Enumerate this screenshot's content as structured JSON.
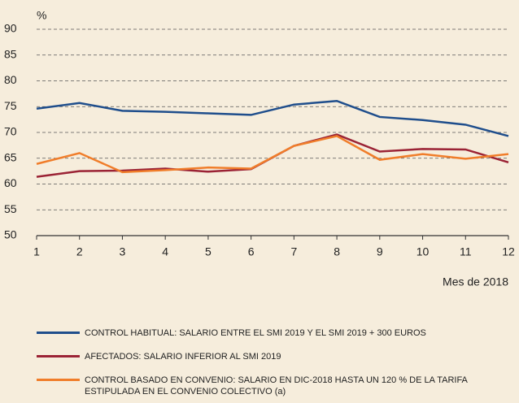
{
  "chart_data": {
    "type": "line",
    "y_label": "%",
    "x_label": "Mes de 2018",
    "x": [
      1,
      2,
      3,
      4,
      5,
      6,
      7,
      8,
      9,
      10,
      11,
      12
    ],
    "xlim": [
      1,
      12
    ],
    "xticks": [
      1,
      2,
      3,
      4,
      5,
      6,
      7,
      8,
      9,
      10,
      11,
      12
    ],
    "ylim": [
      50,
      90
    ],
    "yticks": [
      50,
      55,
      60,
      65,
      70,
      75,
      80,
      85,
      90
    ],
    "grid": true,
    "legend": "bottom",
    "series": [
      {
        "name": "CONTROL HABITUAL: SALARIO ENTRE EL SMI 2019 Y EL SMI 2019 + 300 EUROS",
        "color": "#1f4e8c",
        "values": [
          74.6,
          75.7,
          74.2,
          74.0,
          73.7,
          73.4,
          75.4,
          76.1,
          73.0,
          72.4,
          71.5,
          69.3
        ]
      },
      {
        "name": "AFECTADOS: SALARIO INFERIOR AL SMI 2019",
        "color": "#9b2335",
        "values": [
          61.4,
          62.5,
          62.6,
          63.0,
          62.4,
          62.9,
          67.4,
          69.6,
          66.3,
          66.8,
          66.7,
          64.2
        ]
      },
      {
        "name": "CONTROL BASADO EN CONVENIO: SALARIO EN DIC-2018 HASTA UN 120 % DE LA TARIFA ESTIPULADA EN EL CONVENIO COLECTIVO (a)",
        "color": "#f07d2a",
        "values": [
          63.9,
          66.0,
          62.3,
          62.7,
          63.2,
          63.0,
          67.4,
          69.3,
          64.7,
          65.8,
          64.9,
          65.8
        ]
      }
    ]
  }
}
